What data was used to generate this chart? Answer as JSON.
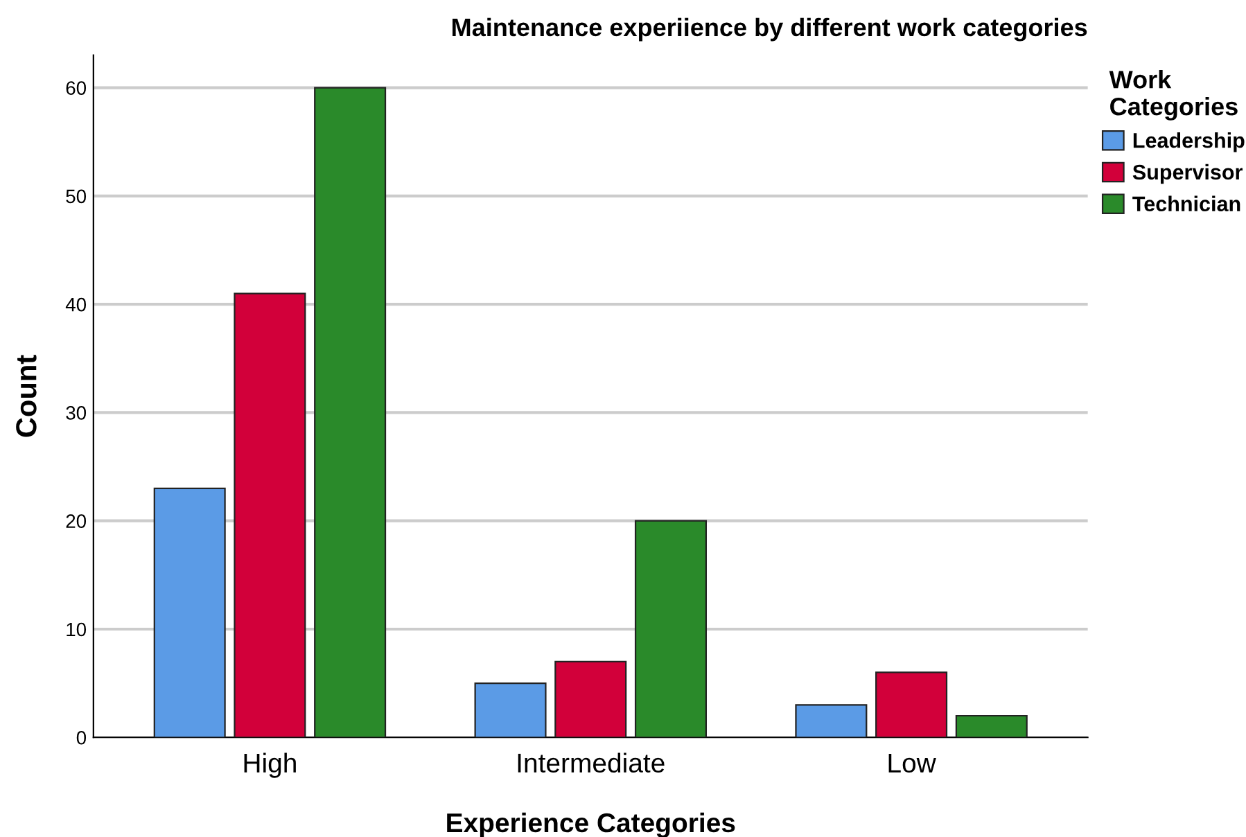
{
  "chart_data": {
    "type": "bar",
    "title": "Maintenance experiience by different work categories",
    "xlabel": "Experience Categories",
    "ylabel": "Count",
    "legend_title": "Work\nCategories",
    "categories": [
      "High",
      "Intermediate",
      "Low"
    ],
    "series": [
      {
        "name": "Leadership",
        "color": "#5b9be6",
        "values": [
          23,
          5,
          3
        ]
      },
      {
        "name": "Supervisor",
        "color": "#d2003a",
        "values": [
          41,
          7,
          6
        ]
      },
      {
        "name": "Technician",
        "color": "#2a8a2a",
        "values": [
          60,
          20,
          2
        ]
      }
    ],
    "ylim": [
      0,
      63
    ],
    "yticks": [
      0,
      10,
      20,
      30,
      40,
      50,
      60
    ],
    "grid": "y",
    "legend": "right"
  }
}
